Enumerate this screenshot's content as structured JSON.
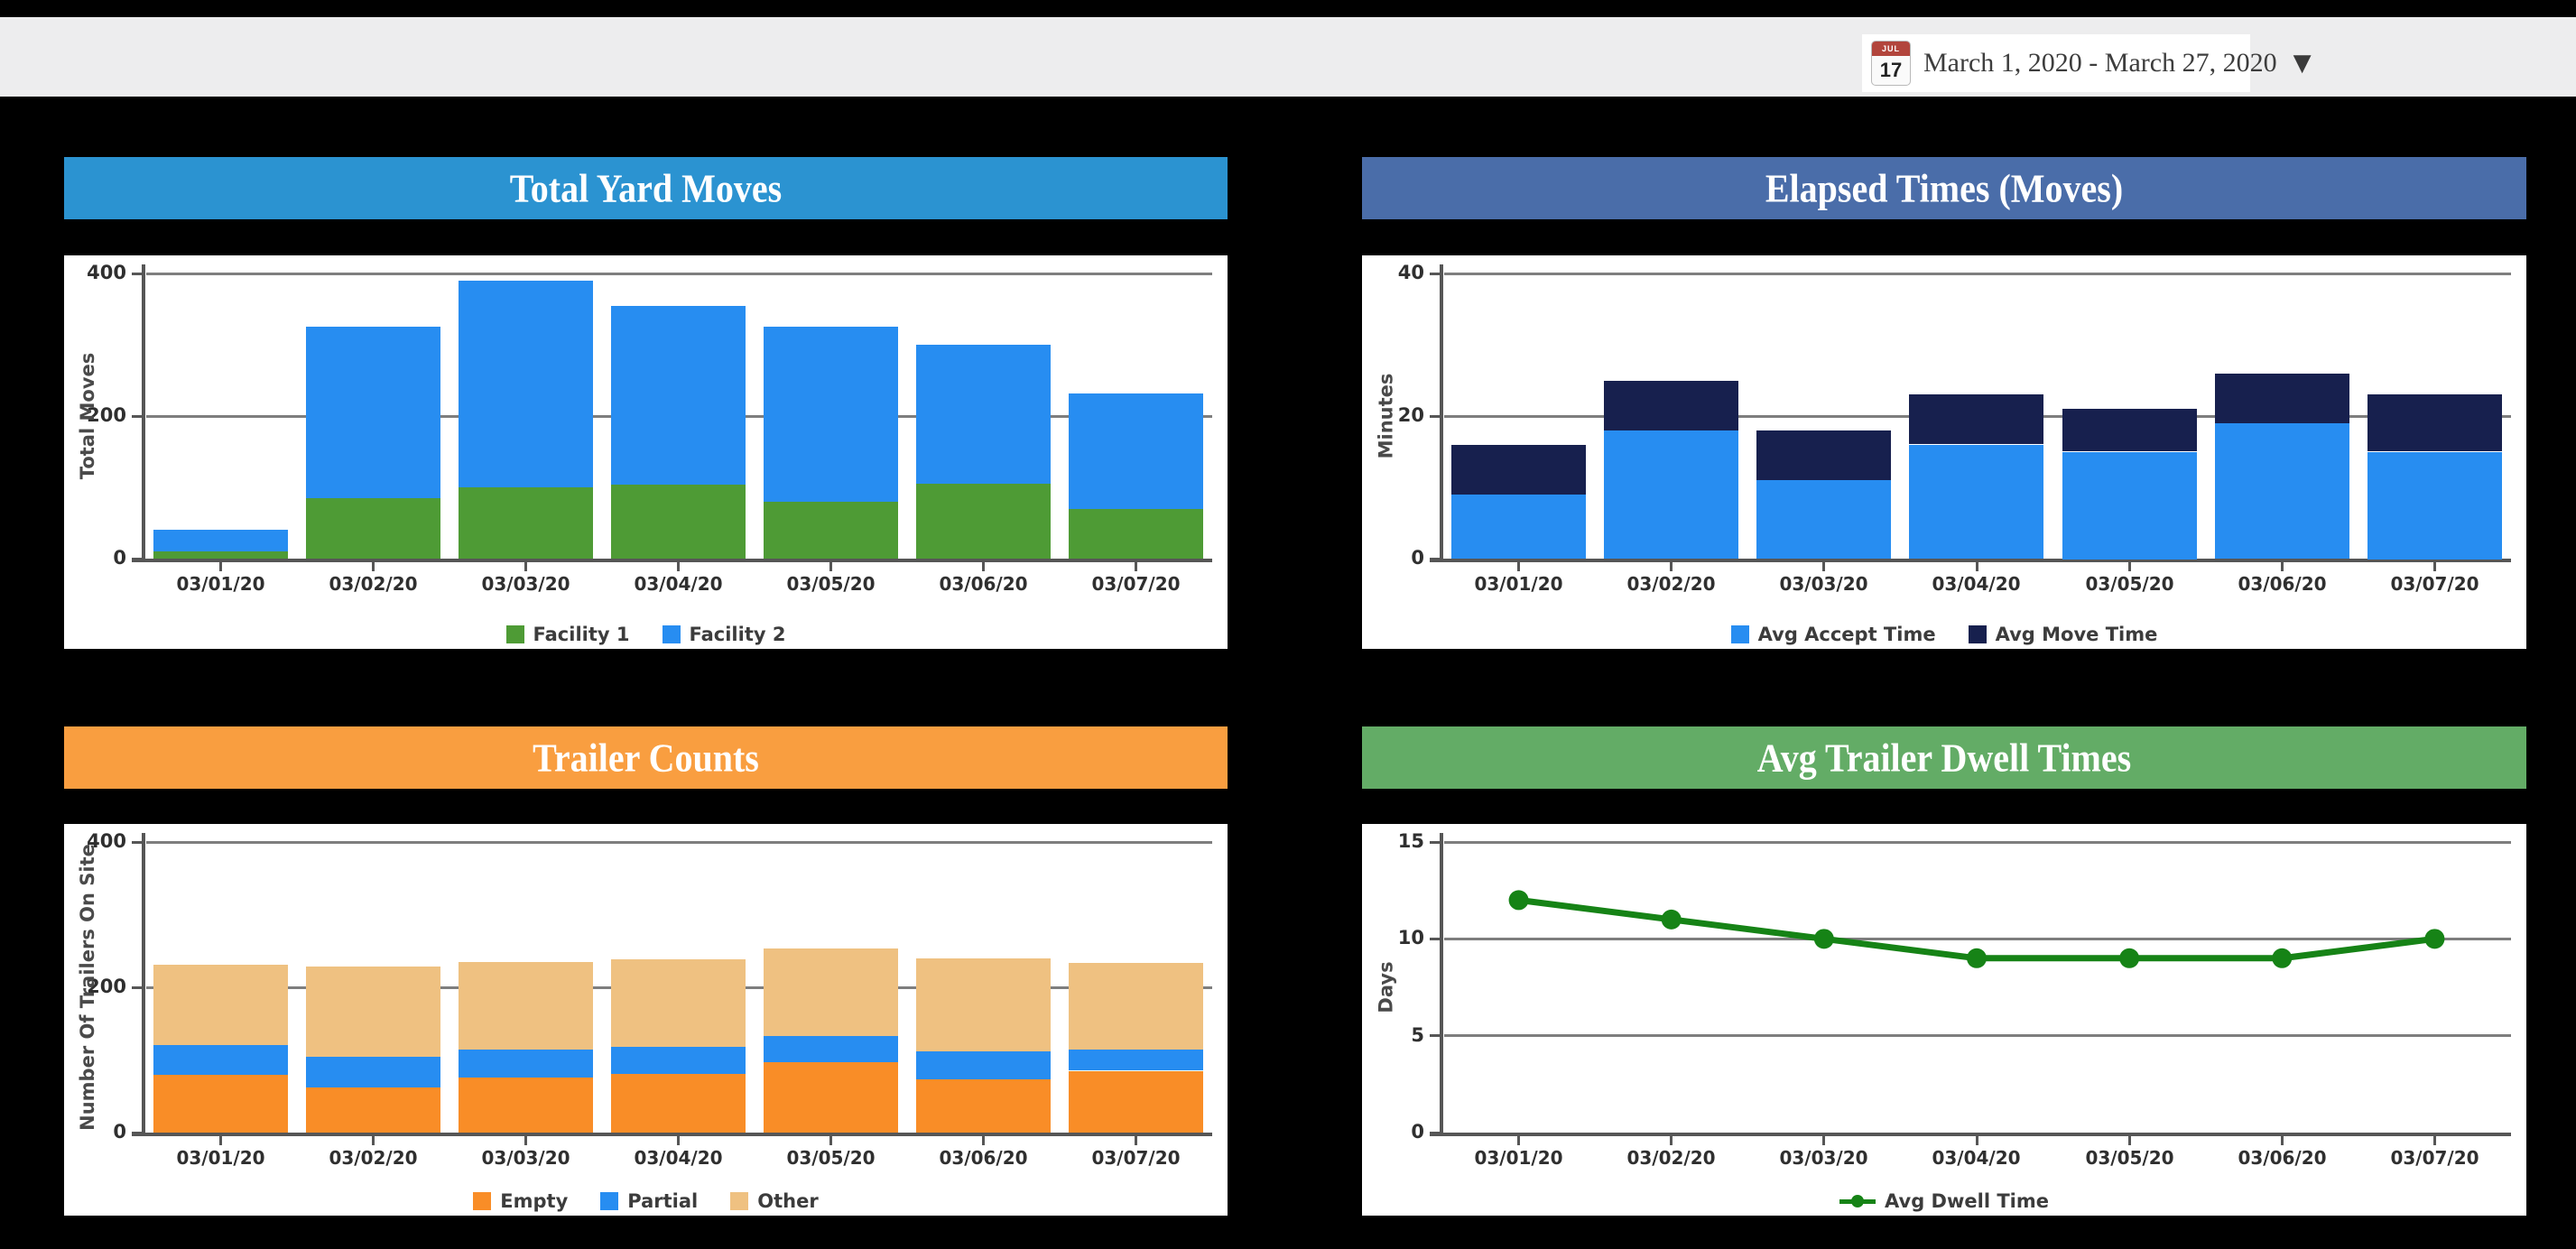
{
  "page": {
    "background": "#000000",
    "topbar_background": "#EDEDEE"
  },
  "topbar": {
    "date_range": {
      "label": "March 1, 2020 - March 27, 2020",
      "calendar_icon_month": "JUL",
      "calendar_icon_day": "17",
      "dropdown_glyph": "▼"
    }
  },
  "chart_data": [
    {
      "type": "bar",
      "stacked": true,
      "title": "Total Yard Moves",
      "header_color": "#2B93D1",
      "ylabel": "Total Moves",
      "ylim": [
        0,
        400
      ],
      "yticks": [
        0,
        200,
        400
      ],
      "grid": true,
      "legend_position": "bottom",
      "categories": [
        "03/01/20",
        "03/02/20",
        "03/03/20",
        "03/04/20",
        "03/05/20",
        "03/06/20",
        "03/07/20"
      ],
      "series": [
        {
          "name": "Facility 1",
          "color": "#4E9B35",
          "values": [
            10,
            85,
            100,
            105,
            80,
            105,
            70
          ]
        },
        {
          "name": "Facility 2",
          "color": "#278DF1",
          "values": [
            30,
            240,
            290,
            250,
            245,
            195,
            162
          ]
        }
      ]
    },
    {
      "type": "bar",
      "stacked": true,
      "title": "Elapsed Times (Moves)",
      "header_color": "#4A6DA9",
      "ylabel": "Minutes",
      "ylim": [
        0,
        40
      ],
      "yticks": [
        0,
        20,
        40
      ],
      "grid": true,
      "legend_position": "bottom",
      "categories": [
        "03/01/20",
        "03/02/20",
        "03/03/20",
        "03/04/20",
        "03/05/20",
        "03/06/20",
        "03/07/20"
      ],
      "series": [
        {
          "name": "Avg Accept Time",
          "color": "#278DF1",
          "values": [
            9,
            18,
            11,
            16,
            15,
            19,
            15
          ]
        },
        {
          "name": "Avg Move Time",
          "color": "#17204E",
          "values": [
            7,
            7,
            7,
            7,
            6,
            7,
            8
          ]
        }
      ]
    },
    {
      "type": "bar",
      "stacked": true,
      "title": "Trailer Counts",
      "header_color": "#F99E40",
      "ylabel": "Number Of Trailers On Site",
      "ylim": [
        0,
        400
      ],
      "yticks": [
        0,
        200,
        400
      ],
      "grid": true,
      "legend_position": "bottom",
      "categories": [
        "03/01/20",
        "03/02/20",
        "03/03/20",
        "03/04/20",
        "03/05/20",
        "03/06/20",
        "03/07/20"
      ],
      "series": [
        {
          "name": "Empty",
          "color": "#F98D27",
          "values": [
            80,
            62,
            76,
            81,
            97,
            73,
            85
          ]
        },
        {
          "name": "Partial",
          "color": "#278DF1",
          "values": [
            41,
            43,
            38,
            37,
            36,
            39,
            30
          ]
        },
        {
          "name": "Other",
          "color": "#EFC181",
          "values": [
            110,
            124,
            121,
            121,
            120,
            128,
            119
          ]
        }
      ]
    },
    {
      "type": "line",
      "title": "Avg Trailer Dwell Times",
      "header_color": "#63AC66",
      "ylabel": "Days",
      "ylim": [
        0,
        15
      ],
      "yticks": [
        0,
        5,
        10,
        15
      ],
      "grid": true,
      "legend_position": "bottom",
      "categories": [
        "03/01/20",
        "03/02/20",
        "03/03/20",
        "03/04/20",
        "03/05/20",
        "03/06/20",
        "03/07/20"
      ],
      "series": [
        {
          "name": "Avg Dwell Time",
          "color": "#168316",
          "values": [
            12,
            11,
            10,
            9,
            9,
            9,
            10
          ]
        }
      ]
    }
  ]
}
